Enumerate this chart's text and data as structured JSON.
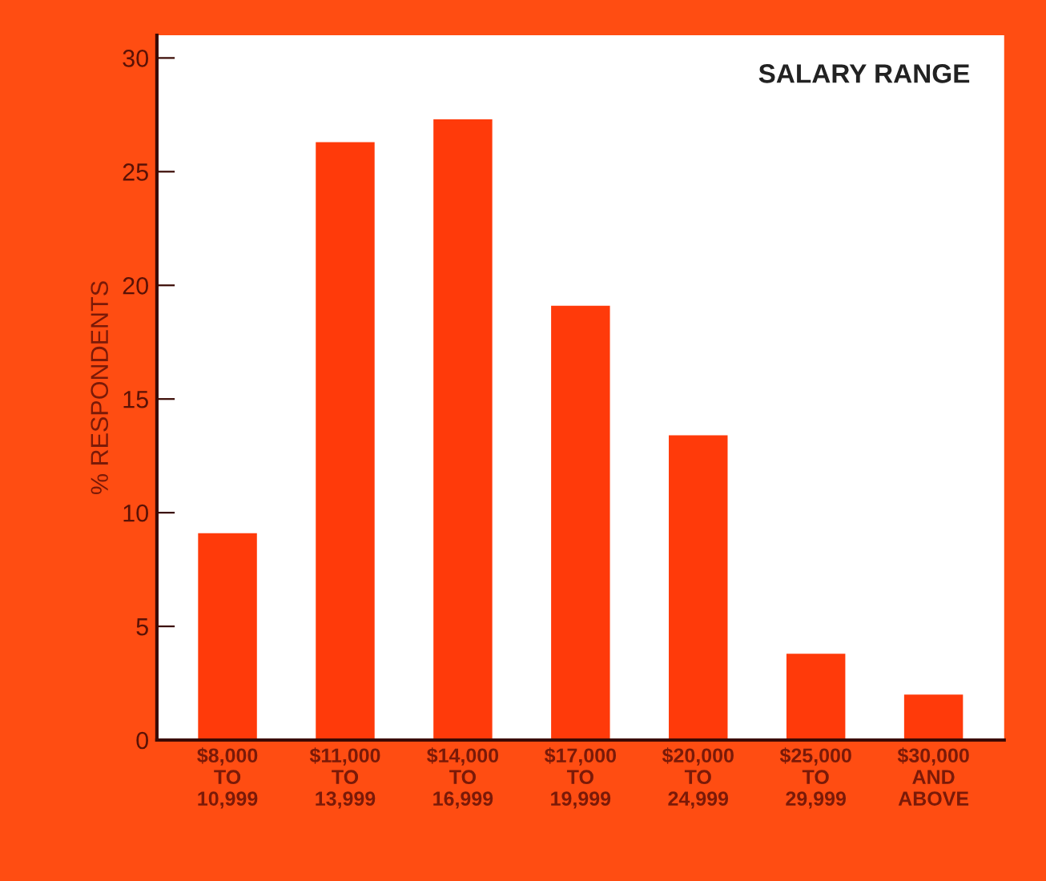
{
  "chart_data": {
    "type": "bar",
    "title": "SALARY RANGE",
    "ylabel": "% RESPONDENTS",
    "categories": [
      "$8,000\nTO\n10,999",
      "$11,000\nTO\n13,999",
      "$14,000\nTO\n16,999",
      "$17,000\nTO\n19,999",
      "$20,000\nTO\n24,999",
      "$25,000\nTO\n29,999",
      "$30,000\nAND\nABOVE"
    ],
    "values": [
      9.1,
      26.3,
      27.3,
      19.1,
      13.4,
      3.8,
      2.0
    ],
    "color": "#ff3a0a",
    "ylim": [
      0,
      31
    ],
    "yticks": [
      0,
      5,
      10,
      15,
      20,
      25,
      30
    ],
    "grid": false
  }
}
